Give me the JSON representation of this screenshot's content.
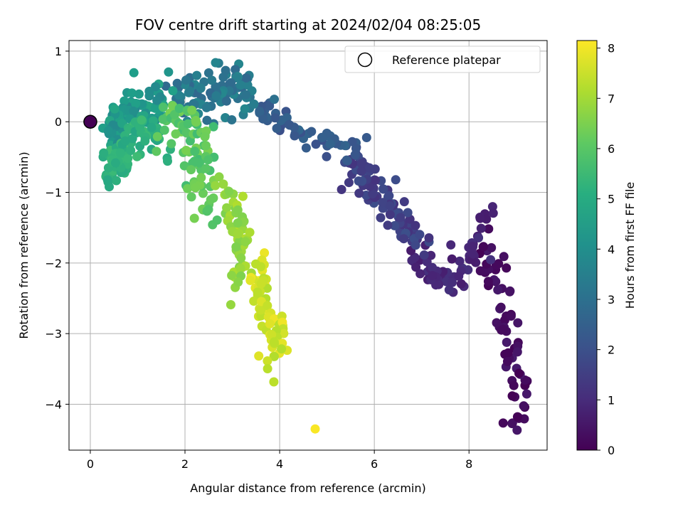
{
  "chart_data": {
    "type": "scatter",
    "title": "FOV centre drift starting at 2024/02/04 08:25:05",
    "xlabel": "Angular distance from reference (arcmin)",
    "ylabel": "Rotation from reference (arcmin)",
    "xlim": [
      -0.45,
      9.65
    ],
    "ylim": [
      -4.65,
      1.15
    ],
    "x_ticks": [
      0,
      2,
      4,
      6,
      8
    ],
    "x_tick_labels": [
      "0",
      "2",
      "4",
      "6",
      "8"
    ],
    "y_ticks": [
      1,
      0,
      -1,
      -2,
      -3,
      -4
    ],
    "y_tick_labels": [
      "1",
      "0",
      "−1",
      "−2",
      "−3",
      "−4"
    ],
    "grid": true,
    "legend_position": "top-right",
    "legend_label": "Reference platepar",
    "reference_point": {
      "x": 0,
      "y": 0
    },
    "colorbar": {
      "label": "Hours from first FF file",
      "colormap": "viridis",
      "range": [
        0,
        8.15
      ],
      "ticks": [
        0,
        1,
        2,
        3,
        4,
        5,
        6,
        7,
        8
      ],
      "tick_labels": [
        "0",
        "1",
        "2",
        "3",
        "4",
        "5",
        "6",
        "7",
        "8"
      ]
    },
    "point_color_variable": "hours",
    "clusters": [
      {
        "segment": "8.6-9.2 / -1.4..-4.4",
        "hours_range": [
          0.0,
          0.6
        ],
        "count": 70,
        "path": [
          [
            8.95,
            -4.4
          ],
          [
            9.1,
            -3.7
          ],
          [
            8.9,
            -3.2
          ],
          [
            8.7,
            -2.7
          ],
          [
            8.5,
            -2.2
          ],
          [
            8.3,
            -1.7
          ]
        ],
        "spread": 0.22
      },
      {
        "segment": "7.6-8.6 / -1.4..-2.8",
        "hours_range": [
          0.6,
          1.2
        ],
        "count": 70,
        "path": [
          [
            8.4,
            -1.4
          ],
          [
            8.0,
            -1.9
          ],
          [
            7.6,
            -2.3
          ],
          [
            7.2,
            -2.1
          ],
          [
            6.8,
            -1.9
          ]
        ],
        "spread": 0.22
      },
      {
        "segment": "5.5-7.2 / -0.3..-2.2",
        "hours_range": [
          1.2,
          2.0
        ],
        "count": 90,
        "path": [
          [
            7.0,
            -1.7
          ],
          [
            6.6,
            -1.4
          ],
          [
            6.2,
            -1.1
          ],
          [
            5.8,
            -0.8
          ],
          [
            5.5,
            -0.5
          ]
        ],
        "spread": 0.22
      },
      {
        "segment": "3.8-5.8 / 0.2..-0.7",
        "hours_range": [
          2.0,
          2.7
        ],
        "count": 60,
        "path": [
          [
            5.6,
            -0.4
          ],
          [
            5.0,
            -0.3
          ],
          [
            4.4,
            -0.2
          ],
          [
            3.9,
            0.05
          ],
          [
            3.5,
            0.1
          ]
        ],
        "spread": 0.18
      },
      {
        "segment": "1.6-3.6 / 0.9..-0.1",
        "hours_range": [
          2.7,
          3.8
        ],
        "count": 100,
        "path": [
          [
            3.4,
            0.35
          ],
          [
            3.0,
            0.55
          ],
          [
            2.6,
            0.45
          ],
          [
            2.2,
            0.35
          ],
          [
            1.8,
            0.3
          ]
        ],
        "spread": 0.28
      },
      {
        "segment": "0.3-1.8 / 0.7..-0.3",
        "hours_range": [
          3.8,
          4.8
        ],
        "count": 90,
        "path": [
          [
            1.6,
            0.35
          ],
          [
            1.2,
            0.3
          ],
          [
            0.8,
            0.2
          ],
          [
            0.5,
            0.05
          ],
          [
            0.4,
            -0.3
          ]
        ],
        "spread": 0.25
      },
      {
        "segment": "0.2-1.3 / -0.2..-1.3",
        "hours_range": [
          4.8,
          5.6
        ],
        "count": 90,
        "path": [
          [
            0.35,
            -0.5
          ],
          [
            0.55,
            -0.8
          ],
          [
            0.7,
            -0.4
          ],
          [
            1.0,
            -0.1
          ],
          [
            1.5,
            -0.2
          ]
        ],
        "spread": 0.22
      },
      {
        "segment": "1.2-3.2 / 0.6..-1.4",
        "hours_range": [
          5.6,
          6.5
        ],
        "count": 90,
        "path": [
          [
            1.5,
            0.1
          ],
          [
            2.0,
            0.0
          ],
          [
            2.4,
            -0.3
          ],
          [
            2.2,
            -0.7
          ],
          [
            2.5,
            -1.3
          ]
        ],
        "spread": 0.25
      },
      {
        "segment": "2.5-3.6 / -0.8..-2.3",
        "hours_range": [
          6.5,
          7.2
        ],
        "count": 60,
        "path": [
          [
            2.8,
            -0.9
          ],
          [
            3.1,
            -1.4
          ],
          [
            3.2,
            -1.8
          ],
          [
            3.1,
            -2.3
          ]
        ],
        "spread": 0.2
      },
      {
        "segment": "3.3-4.3 / -1.7..-3.6",
        "hours_range": [
          7.2,
          8.0
        ],
        "count": 70,
        "path": [
          [
            3.7,
            -1.9
          ],
          [
            3.5,
            -2.4
          ],
          [
            3.8,
            -2.7
          ],
          [
            4.0,
            -3.0
          ],
          [
            3.7,
            -3.5
          ]
        ],
        "spread": 0.18
      },
      {
        "segment": "outlier",
        "hours_range": [
          8.1,
          8.1
        ],
        "count": 1,
        "path": [
          [
            4.75,
            -4.35
          ]
        ],
        "spread": 0.0
      }
    ]
  }
}
